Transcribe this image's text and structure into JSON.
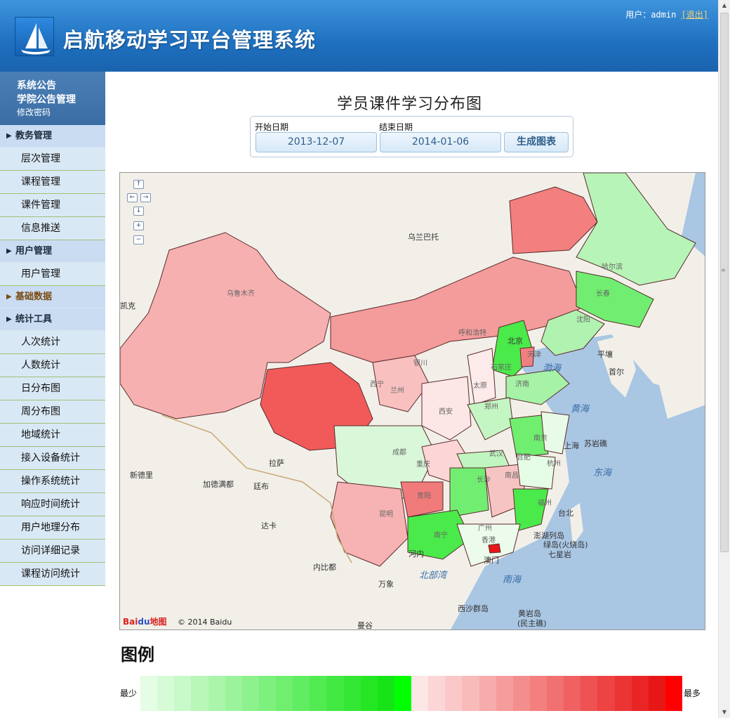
{
  "header": {
    "title": "启航移动学习平台管理系统",
    "user_label": "用户：admin",
    "logout_label": "[退出]"
  },
  "sidebar": {
    "top_links": [
      "系统公告",
      "学院公告管理",
      "修改密码"
    ],
    "sections": [
      {
        "label": "教务管理",
        "items": [
          "层次管理",
          "课程管理",
          "课件管理",
          "信息推送"
        ]
      },
      {
        "label": "用户管理",
        "items": [
          "用户管理"
        ]
      },
      {
        "label": "基础数据",
        "items": []
      },
      {
        "label": "统计工具",
        "items": [
          "人次统计",
          "人数统计",
          "日分布图",
          "周分布图",
          "地域统计",
          "接入设备统计",
          "操作系统统计",
          "响应时间统计",
          "用户地理分布",
          "访问详细记录",
          "课程访问统计"
        ]
      }
    ]
  },
  "main": {
    "title": "学员课件学习分布图",
    "start_label": "开始日期",
    "start_value": "2013-12-07",
    "end_label": "结束日期",
    "end_value": "2014-01-06",
    "generate_label": "生成图表"
  },
  "map": {
    "zoom_controls": [
      "↑",
      "←",
      "→",
      "↓",
      "+",
      "−"
    ],
    "copyright": "© 2014 Baidu",
    "logo_text": [
      "Bai",
      "du",
      "地图"
    ],
    "cities": [
      "乌兰巴托",
      "哈尔滨",
      "长春",
      "沈阳",
      "平壤",
      "首尔",
      "乌鲁木齐",
      "呼和浩特",
      "北京",
      "天津",
      "石家庄",
      "太原",
      "济南",
      "银川",
      "西宁",
      "兰州",
      "西安",
      "郑州",
      "凯克",
      "拉萨",
      "成都",
      "重庆",
      "武汉",
      "合肥",
      "南京",
      "上海",
      "杭州",
      "苏岩礁",
      "新德里",
      "加德满都",
      "廷布",
      "贵阳",
      "长沙",
      "南昌",
      "福州",
      "台北",
      "达卡",
      "昆明",
      "南宁",
      "广州",
      "香港",
      "澳门",
      "澎湖列岛",
      "绿岛(火烧岛)",
      "七星岩",
      "河内",
      "内比都",
      "万象",
      "西沙群岛",
      "黄岩岛",
      "(民主礁)",
      "曼谷"
    ],
    "seas": [
      "渤海",
      "黄海",
      "东海",
      "南海",
      "北部湾"
    ]
  },
  "legend": {
    "title": "图例",
    "min_label": "最少",
    "max_label": "最多",
    "colors": [
      "#e5fce5",
      "#d6fbd6",
      "#c8f9c8",
      "#b9f7b9",
      "#aaf5aa",
      "#9bf49b",
      "#8df28d",
      "#7ef07e",
      "#6fee6f",
      "#61ed61",
      "#52eb52",
      "#43e943",
      "#34e734",
      "#25e625",
      "#17e417",
      "#00ff00",
      "#fde6e6",
      "#fcd6d6",
      "#fac8c8",
      "#f9baba",
      "#f7abab",
      "#f69c9c",
      "#f48e8e",
      "#f37f7f",
      "#f17070",
      "#f06161",
      "#ee5252",
      "#ed4343",
      "#eb3434",
      "#e92525",
      "#e81717",
      "#ff0000"
    ]
  }
}
